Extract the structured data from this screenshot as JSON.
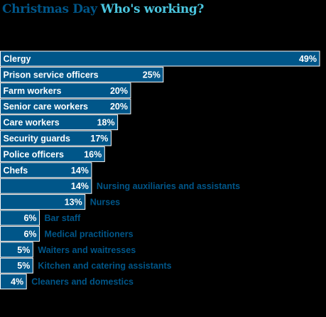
{
  "header": {
    "title_part1": "Christmas Day",
    "title_part2": "Who's working?"
  },
  "colors": {
    "background": "#000000",
    "bar_fill": "#005689",
    "bar_border": "#ffffff",
    "bar_text": "#ffffff",
    "outside_label": "#005689",
    "title_primary": "#005689",
    "title_accent": "#4bc6df"
  },
  "chart_data": {
    "type": "bar",
    "orientation": "horizontal",
    "title": "Christmas Day Who's working?",
    "unit": "%",
    "categories": [
      "Clergy",
      "Prison service officers",
      "Farm workers",
      "Senior care workers",
      "Care workers",
      "Security guards",
      "Police officers",
      "Chefs",
      "Nursing auxiliaries and assistants",
      "Nurses",
      "Bar staff",
      "Medical practitioners",
      "Waiters and waitresses",
      "Kitchen and catering assistants",
      "Cleaners and domestics"
    ],
    "values": [
      49,
      25,
      20,
      20,
      18,
      17,
      16,
      14,
      14,
      13,
      6,
      6,
      5,
      5,
      4
    ],
    "value_labels": [
      "49%",
      "25%",
      "20%",
      "20%",
      "18%",
      "17%",
      "16%",
      "14%",
      "14%",
      "13%",
      "6%",
      "6%",
      "5%",
      "5%",
      "4%"
    ],
    "label_inside": [
      true,
      true,
      true,
      true,
      true,
      true,
      true,
      true,
      false,
      false,
      false,
      false,
      false,
      false,
      false
    ],
    "xlim": [
      0,
      49
    ]
  }
}
